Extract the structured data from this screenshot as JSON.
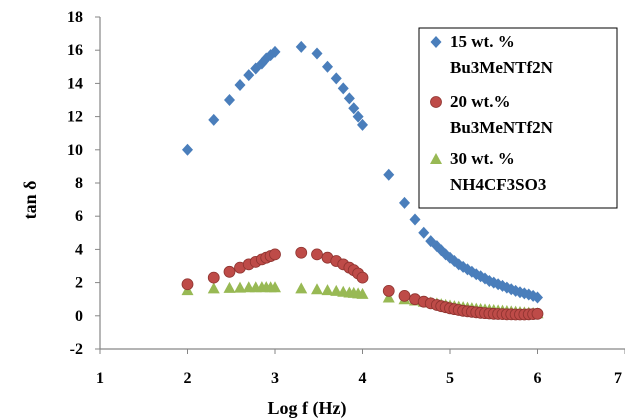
{
  "chart_data": {
    "type": "scatter",
    "xlabel": "Log f (Hz)",
    "ylabel": "tan δ",
    "xlim": [
      1,
      7
    ],
    "ylim": [
      -2,
      18
    ],
    "x_ticks": [
      1,
      2,
      3,
      4,
      5,
      6,
      7
    ],
    "x_tick_labels": [
      "1",
      "2",
      "3",
      "4",
      "5",
      "6",
      "7"
    ],
    "y_ticks": [
      -2,
      0,
      2,
      4,
      6,
      8,
      10,
      12,
      14,
      16,
      18
    ],
    "y_tick_labels": [
      "-2",
      "0",
      "2",
      "4",
      "6",
      "8",
      "10",
      "12",
      "14",
      "16",
      "18"
    ],
    "grid": false,
    "legend_position": "top-right",
    "series": [
      {
        "legend_lines": [
          "15 wt. %",
          "Bu3MeNTf2N"
        ],
        "marker": "diamond",
        "color": "#4A7EBB",
        "x": [
          2.0,
          2.3,
          2.48,
          2.6,
          2.7,
          2.78,
          2.85,
          2.9,
          2.95,
          3.0,
          3.3,
          3.48,
          3.6,
          3.7,
          3.78,
          3.85,
          3.9,
          3.95,
          4.0,
          4.3,
          4.48,
          4.6,
          4.7,
          4.78,
          4.85,
          4.9,
          4.95,
          5.0,
          5.05,
          5.1,
          5.15,
          5.2,
          5.25,
          5.3,
          5.35,
          5.4,
          5.45,
          5.5,
          5.55,
          5.6,
          5.65,
          5.7,
          5.75,
          5.8,
          5.85,
          5.9,
          5.95,
          6.0
        ],
        "y": [
          10.0,
          11.8,
          13.0,
          13.9,
          14.5,
          14.9,
          15.2,
          15.5,
          15.7,
          15.9,
          16.2,
          15.8,
          15.0,
          14.3,
          13.7,
          13.1,
          12.5,
          12.0,
          11.5,
          8.5,
          6.8,
          5.8,
          5.0,
          4.5,
          4.2,
          3.95,
          3.7,
          3.5,
          3.3,
          3.1,
          2.95,
          2.8,
          2.65,
          2.5,
          2.38,
          2.25,
          2.1,
          2.0,
          1.9,
          1.8,
          1.7,
          1.6,
          1.5,
          1.42,
          1.35,
          1.28,
          1.2,
          1.1
        ]
      },
      {
        "legend_lines": [
          "20 wt.%",
          "Bu3MeNTf2N"
        ],
        "marker": "circle",
        "color": "#BE4B48",
        "x": [
          2.0,
          2.3,
          2.48,
          2.6,
          2.7,
          2.78,
          2.85,
          2.9,
          2.95,
          3.0,
          3.3,
          3.48,
          3.6,
          3.7,
          3.78,
          3.85,
          3.9,
          3.95,
          4.0,
          4.3,
          4.48,
          4.6,
          4.7,
          4.78,
          4.85,
          4.9,
          4.95,
          5.0,
          5.05,
          5.1,
          5.15,
          5.2,
          5.25,
          5.3,
          5.35,
          5.4,
          5.45,
          5.5,
          5.55,
          5.6,
          5.65,
          5.7,
          5.75,
          5.8,
          5.85,
          5.9,
          5.95,
          6.0
        ],
        "y": [
          1.9,
          2.3,
          2.65,
          2.9,
          3.1,
          3.25,
          3.4,
          3.5,
          3.6,
          3.7,
          3.8,
          3.7,
          3.5,
          3.3,
          3.1,
          2.9,
          2.75,
          2.55,
          2.3,
          1.5,
          1.2,
          1.0,
          0.85,
          0.75,
          0.65,
          0.58,
          0.52,
          0.45,
          0.4,
          0.35,
          0.3,
          0.27,
          0.24,
          0.21,
          0.18,
          0.16,
          0.14,
          0.12,
          0.11,
          0.1,
          0.09,
          0.09,
          0.08,
          0.08,
          0.08,
          0.09,
          0.1,
          0.12
        ]
      },
      {
        "legend_lines": [
          "30 wt. %",
          "NH4CF3SO3"
        ],
        "marker": "triangle",
        "color": "#98B954",
        "x": [
          2.0,
          2.3,
          2.48,
          2.6,
          2.7,
          2.78,
          2.85,
          2.9,
          2.95,
          3.0,
          3.3,
          3.48,
          3.6,
          3.7,
          3.78,
          3.85,
          3.9,
          3.95,
          4.0,
          4.3,
          4.48,
          4.6,
          4.7,
          4.78,
          4.85,
          4.9,
          4.95,
          5.0,
          5.05,
          5.1,
          5.15,
          5.2,
          5.25,
          5.3,
          5.35,
          5.4,
          5.45,
          5.5,
          5.55,
          5.6,
          5.65,
          5.7,
          5.75,
          5.8,
          5.85,
          5.9,
          5.95,
          6.0
        ],
        "y": [
          1.55,
          1.65,
          1.68,
          1.7,
          1.72,
          1.72,
          1.73,
          1.73,
          1.72,
          1.72,
          1.65,
          1.6,
          1.55,
          1.5,
          1.45,
          1.4,
          1.38,
          1.35,
          1.32,
          1.1,
          1.0,
          0.92,
          0.85,
          0.8,
          0.75,
          0.7,
          0.66,
          0.62,
          0.58,
          0.55,
          0.52,
          0.49,
          0.46,
          0.43,
          0.41,
          0.39,
          0.37,
          0.35,
          0.33,
          0.31,
          0.29,
          0.27,
          0.25,
          0.23,
          0.21,
          0.19,
          0.17,
          0.15
        ]
      }
    ]
  }
}
